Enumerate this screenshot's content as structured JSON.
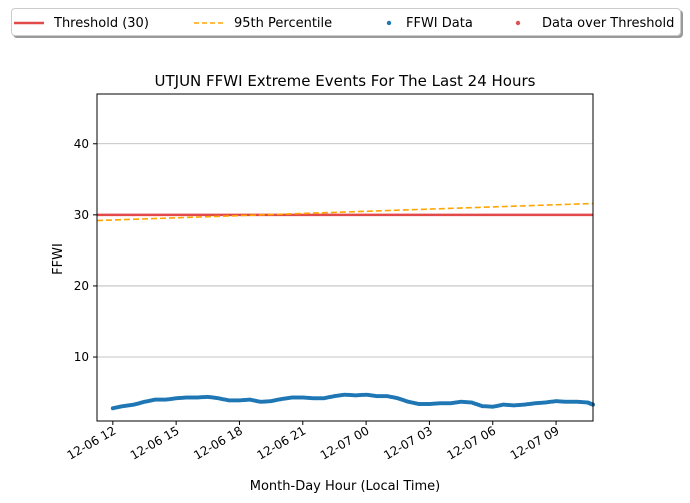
{
  "chart_data": {
    "type": "line",
    "title": "UTJUN FFWI Extreme Events For The Last 24 Hours",
    "xlabel": "Month-Day Hour (Local Time)",
    "ylabel": "FFWI",
    "xlim": [
      "2012-12-06T11:15",
      "2012-12-07T10:45"
    ],
    "ylim": [
      1,
      47
    ],
    "yticks": [
      10,
      20,
      30,
      40
    ],
    "grid": "y",
    "xticks": [
      {
        "x": "2012-12-06T12:00",
        "label": "12-06 12"
      },
      {
        "x": "2012-12-06T15:00",
        "label": "12-06 15"
      },
      {
        "x": "2012-12-06T18:00",
        "label": "12-06 18"
      },
      {
        "x": "2012-12-06T21:00",
        "label": "12-06 21"
      },
      {
        "x": "2012-12-07T00:00",
        "label": "12-07 00"
      },
      {
        "x": "2012-12-07T03:00",
        "label": "12-07 03"
      },
      {
        "x": "2012-12-07T06:00",
        "label": "12-07 06"
      },
      {
        "x": "2012-12-07T09:00",
        "label": "12-07 09"
      }
    ],
    "legend_placement": "top, above plot",
    "series": [
      {
        "name": "Threshold (30)",
        "kind": "hline",
        "y": 30,
        "color": "#e24a4a"
      },
      {
        "name": "95th Percentile",
        "kind": "dashed-line",
        "color": "#ffa500",
        "x": [
          "2012-12-06T11:15",
          "2012-12-07T10:45"
        ],
        "values": [
          29.2,
          31.6
        ]
      },
      {
        "name": "FFWI Data",
        "kind": "scatter",
        "color": "#1f77b4",
        "x": [
          "2012-12-06T12:00",
          "2012-12-06T12:30",
          "2012-12-06T13:00",
          "2012-12-06T13:30",
          "2012-12-06T14:00",
          "2012-12-06T14:30",
          "2012-12-06T15:00",
          "2012-12-06T15:30",
          "2012-12-06T16:00",
          "2012-12-06T16:30",
          "2012-12-06T17:00",
          "2012-12-06T17:30",
          "2012-12-06T18:00",
          "2012-12-06T18:30",
          "2012-12-06T19:00",
          "2012-12-06T19:30",
          "2012-12-06T20:00",
          "2012-12-06T20:30",
          "2012-12-06T21:00",
          "2012-12-06T21:30",
          "2012-12-06T22:00",
          "2012-12-06T22:30",
          "2012-12-06T23:00",
          "2012-12-06T23:30",
          "2012-12-07T00:00",
          "2012-12-07T00:30",
          "2012-12-07T01:00",
          "2012-12-07T01:30",
          "2012-12-07T02:00",
          "2012-12-07T02:30",
          "2012-12-07T03:00",
          "2012-12-07T03:30",
          "2012-12-07T04:00",
          "2012-12-07T04:30",
          "2012-12-07T05:00",
          "2012-12-07T05:30",
          "2012-12-07T06:00",
          "2012-12-07T06:30",
          "2012-12-07T07:00",
          "2012-12-07T07:30",
          "2012-12-07T08:00",
          "2012-12-07T08:30",
          "2012-12-07T09:00",
          "2012-12-07T09:30",
          "2012-12-07T10:00",
          "2012-12-07T10:30",
          "2012-12-07T10:45"
        ],
        "values": [
          2.8,
          3.1,
          3.3,
          3.7,
          4.0,
          4.0,
          4.2,
          4.3,
          4.3,
          4.4,
          4.2,
          3.9,
          3.9,
          4.0,
          3.7,
          3.8,
          4.1,
          4.3,
          4.3,
          4.2,
          4.2,
          4.5,
          4.7,
          4.6,
          4.7,
          4.5,
          4.5,
          4.2,
          3.7,
          3.4,
          3.4,
          3.5,
          3.5,
          3.7,
          3.6,
          3.1,
          3.0,
          3.3,
          3.2,
          3.3,
          3.5,
          3.6,
          3.8,
          3.7,
          3.7,
          3.6,
          3.3
        ]
      },
      {
        "name": "Data over Threshold",
        "kind": "scatter",
        "color": "#d9534f",
        "x": [],
        "values": []
      }
    ]
  }
}
